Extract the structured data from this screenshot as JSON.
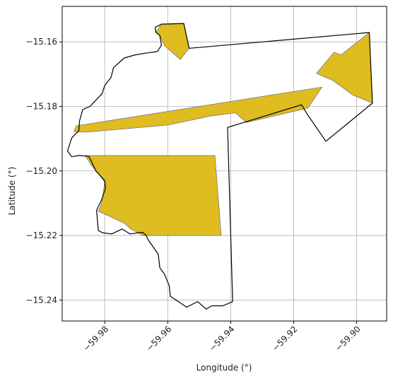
{
  "chart_data": {
    "type": "map",
    "xlabel": "Longitude (°)",
    "ylabel": "Latitude (°)",
    "xlim": [
      -59.9935,
      -59.8905
    ],
    "ylim": [
      -15.2465,
      -15.149
    ],
    "grid": true,
    "x_ticks": [
      {
        "value": -59.98,
        "label": "−59.98"
      },
      {
        "value": -59.96,
        "label": "−59.96"
      },
      {
        "value": -59.94,
        "label": "−59.94"
      },
      {
        "value": -59.92,
        "label": "−59.92"
      },
      {
        "value": -59.9,
        "label": "−59.90"
      }
    ],
    "y_ticks": [
      {
        "value": -15.16,
        "label": "−15.16"
      },
      {
        "value": -15.18,
        "label": "−15.18"
      },
      {
        "value": -15.2,
        "label": "−15.20"
      },
      {
        "value": -15.22,
        "label": "−15.22"
      },
      {
        "value": -15.24,
        "label": "−15.24"
      }
    ],
    "colors": {
      "boundary": "#000000",
      "fill": "#dfbc1f",
      "fill_edge": "#5a5a9e",
      "grid": "#b0b0b0",
      "frame": "#000000"
    },
    "boundary": [
      [
        -59.9549,
        -15.1543
      ],
      [
        -59.9532,
        -15.162
      ],
      [
        -59.896,
        -15.1571
      ],
      [
        -59.895,
        -15.179
      ],
      [
        -59.9098,
        -15.1908
      ],
      [
        -59.916,
        -15.182
      ],
      [
        -59.9175,
        -15.1795
      ],
      [
        -59.941,
        -15.1865
      ],
      [
        -59.9394,
        -15.2405
      ],
      [
        -59.9425,
        -15.2418
      ],
      [
        -59.946,
        -15.2418
      ],
      [
        -59.9478,
        -15.2428
      ],
      [
        -59.9505,
        -15.2405
      ],
      [
        -59.954,
        -15.2422
      ],
      [
        -59.9592,
        -15.2388
      ],
      [
        -59.9595,
        -15.2356
      ],
      [
        -59.961,
        -15.232
      ],
      [
        -59.9625,
        -15.23
      ],
      [
        -59.963,
        -15.2258
      ],
      [
        -59.9663,
        -15.2212
      ],
      [
        -59.9668,
        -15.22
      ],
      [
        -59.968,
        -15.219
      ],
      [
        -59.972,
        -15.2195
      ],
      [
        -59.9745,
        -15.218
      ],
      [
        -59.9778,
        -15.2195
      ],
      [
        -59.9805,
        -15.2192
      ],
      [
        -59.982,
        -15.2185
      ],
      [
        -59.9822,
        -15.2168
      ],
      [
        -59.9826,
        -15.2122
      ],
      [
        -59.981,
        -15.209
      ],
      [
        -59.9798,
        -15.2055
      ],
      [
        -59.98,
        -15.203
      ],
      [
        -59.9828,
        -15.2
      ],
      [
        -59.985,
        -15.1955
      ],
      [
        -59.9882,
        -15.1952
      ],
      [
        -59.9905,
        -15.1956
      ],
      [
        -59.9918,
        -15.1938
      ],
      [
        -59.9905,
        -15.1898
      ],
      [
        -59.9882,
        -15.1875
      ],
      [
        -59.988,
        -15.1845
      ],
      [
        -59.987,
        -15.181
      ],
      [
        -59.9847,
        -15.18
      ],
      [
        -59.9832,
        -15.1785
      ],
      [
        -59.9808,
        -15.176
      ],
      [
        -59.98,
        -15.1735
      ],
      [
        -59.978,
        -15.171
      ],
      [
        -59.9772,
        -15.168
      ],
      [
        -59.9738,
        -15.165
      ],
      [
        -59.9702,
        -15.164
      ],
      [
        -59.967,
        -15.1635
      ],
      [
        -59.9633,
        -15.163
      ],
      [
        -59.962,
        -15.161
      ],
      [
        -59.9625,
        -15.158
      ],
      [
        -59.9638,
        -15.157
      ],
      [
        -59.964,
        -15.1555
      ],
      [
        -59.962,
        -15.1545
      ],
      [
        -59.9549,
        -15.1543
      ]
    ],
    "filled_areas": [
      [
        [
          -59.9638,
          -15.157
        ],
        [
          -59.962,
          -15.1545
        ],
        [
          -59.9549,
          -15.1543
        ],
        [
          -59.9532,
          -15.162
        ],
        [
          -59.956,
          -15.1655
        ],
        [
          -59.961,
          -15.1612
        ],
        [
          -59.9625,
          -15.158
        ]
      ],
      [
        [
          -59.9898,
          -15.1878
        ],
        [
          -59.989,
          -15.186
        ],
        [
          -59.911,
          -15.174
        ],
        [
          -59.9155,
          -15.1805
        ],
        [
          -59.935,
          -15.185
        ],
        [
          -59.9385,
          -15.182
        ],
        [
          -59.9465,
          -15.183
        ],
        [
          -59.96,
          -15.1858
        ],
        [
          -59.9862,
          -15.188
        ]
      ],
      [
        [
          -59.9862,
          -15.1952
        ],
        [
          -59.945,
          -15.1952
        ],
        [
          -59.943,
          -15.22
        ],
        [
          -59.9678,
          -15.22
        ],
        [
          -59.9718,
          -15.218
        ],
        [
          -59.9738,
          -15.2162
        ],
        [
          -59.979,
          -15.2138
        ],
        [
          -59.982,
          -15.2125
        ],
        [
          -59.981,
          -15.21
        ],
        [
          -59.9806,
          -15.2075
        ],
        [
          -59.98,
          -15.2035
        ],
        [
          -59.9818,
          -15.201
        ],
        [
          -59.9843,
          -15.1982
        ]
      ],
      [
        [
          -59.905,
          -15.164
        ],
        [
          -59.896,
          -15.1571
        ],
        [
          -59.895,
          -15.179
        ],
        [
          -59.9012,
          -15.1765
        ],
        [
          -59.9075,
          -15.172
        ],
        [
          -59.9128,
          -15.1698
        ],
        [
          -59.9072,
          -15.1632
        ]
      ]
    ]
  }
}
